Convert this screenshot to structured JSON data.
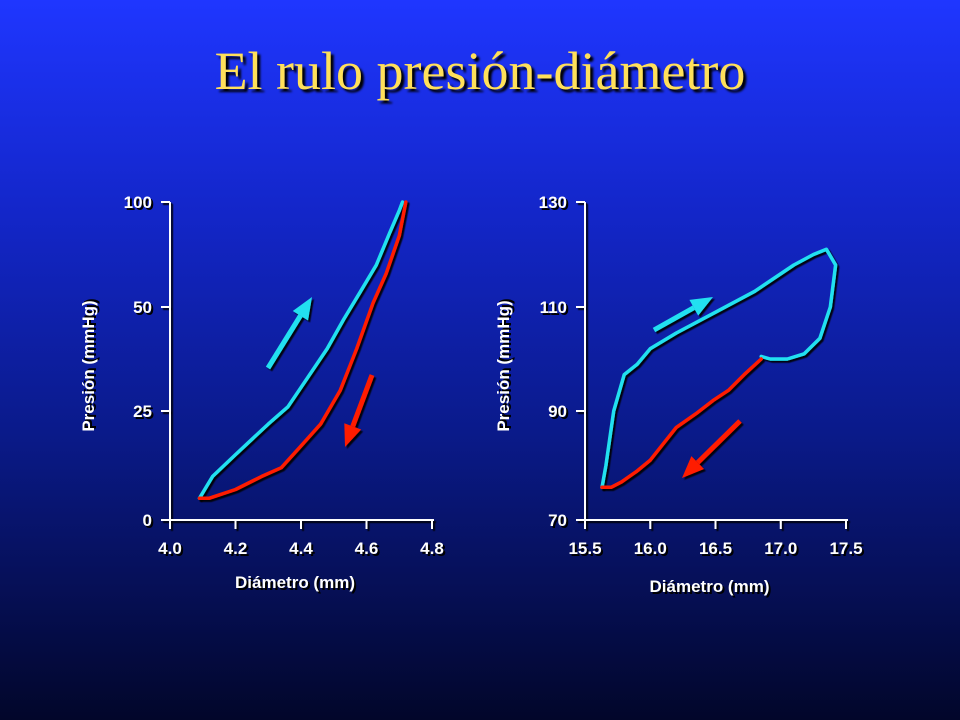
{
  "title": "El rulo presión-diámetro",
  "colors": {
    "title": "#ffe05a",
    "inflation": "#22e0f0",
    "deflation": "#ff1a00",
    "axis": "#ffffff"
  },
  "chart_data": [
    {
      "type": "line",
      "xlabel": "Diámetro (mm)",
      "ylabel": "Presión (mmHg)",
      "xlim": [
        4.0,
        4.8
      ],
      "ylim": [
        0,
        100
      ],
      "xticks": [
        "4.0",
        "4.2",
        "4.4",
        "4.6",
        "4.8"
      ],
      "yticks": [
        "0",
        "25",
        "50",
        "100"
      ],
      "yticks_values": [
        0,
        25,
        50,
        100
      ],
      "y_scale_note": "nonlinear",
      "series": [
        {
          "color": "#22e0f0",
          "direction": "up",
          "x": [
            4.09,
            4.13,
            4.2,
            4.3,
            4.36,
            4.42,
            4.48,
            4.53,
            4.58,
            4.63,
            4.67,
            4.7,
            4.71
          ],
          "y": [
            5,
            10,
            15,
            22,
            26,
            33,
            40,
            47,
            57,
            70,
            85,
            96,
            100
          ]
        },
        {
          "color": "#ff1a00",
          "direction": "down",
          "x": [
            4.09,
            4.12,
            4.2,
            4.28,
            4.34,
            4.4,
            4.46,
            4.52,
            4.57,
            4.62,
            4.66,
            4.7,
            4.72
          ],
          "y": [
            5,
            5,
            7,
            10,
            12,
            17,
            22,
            30,
            40,
            52,
            66,
            84,
            100
          ]
        }
      ]
    },
    {
      "type": "line",
      "xlabel": "Diámetro (mm)",
      "ylabel": "Presión (mmHg)",
      "xlim": [
        15.5,
        17.5
      ],
      "ylim": [
        70,
        130
      ],
      "xticks": [
        "15.5",
        "16.0",
        "16.5",
        "17.0",
        "17.5"
      ],
      "yticks": [
        "70",
        "90",
        "110",
        "130"
      ],
      "yticks_values": [
        70,
        90,
        110,
        130
      ],
      "series": [
        {
          "color": "#22e0f0",
          "direction": "up",
          "x": [
            15.63,
            15.66,
            15.72,
            15.8,
            15.9,
            16.0,
            16.2,
            16.5,
            16.8,
            17.1,
            17.25,
            17.35,
            17.42,
            17.38,
            17.3,
            17.18,
            17.05,
            16.92,
            16.85
          ],
          "y": [
            76,
            80,
            90,
            97,
            99,
            102,
            105,
            109,
            113,
            118,
            120,
            121,
            118,
            110,
            104,
            101,
            100,
            100,
            100.5
          ]
        },
        {
          "color": "#ff1a00",
          "direction": "down",
          "x": [
            15.63,
            15.7,
            15.78,
            15.9,
            16.0,
            16.1,
            16.2,
            16.35,
            16.48,
            16.6,
            16.72,
            16.85
          ],
          "y": [
            76,
            76,
            77,
            79,
            81,
            84,
            87,
            89.5,
            92,
            94,
            97,
            100
          ]
        }
      ]
    }
  ]
}
